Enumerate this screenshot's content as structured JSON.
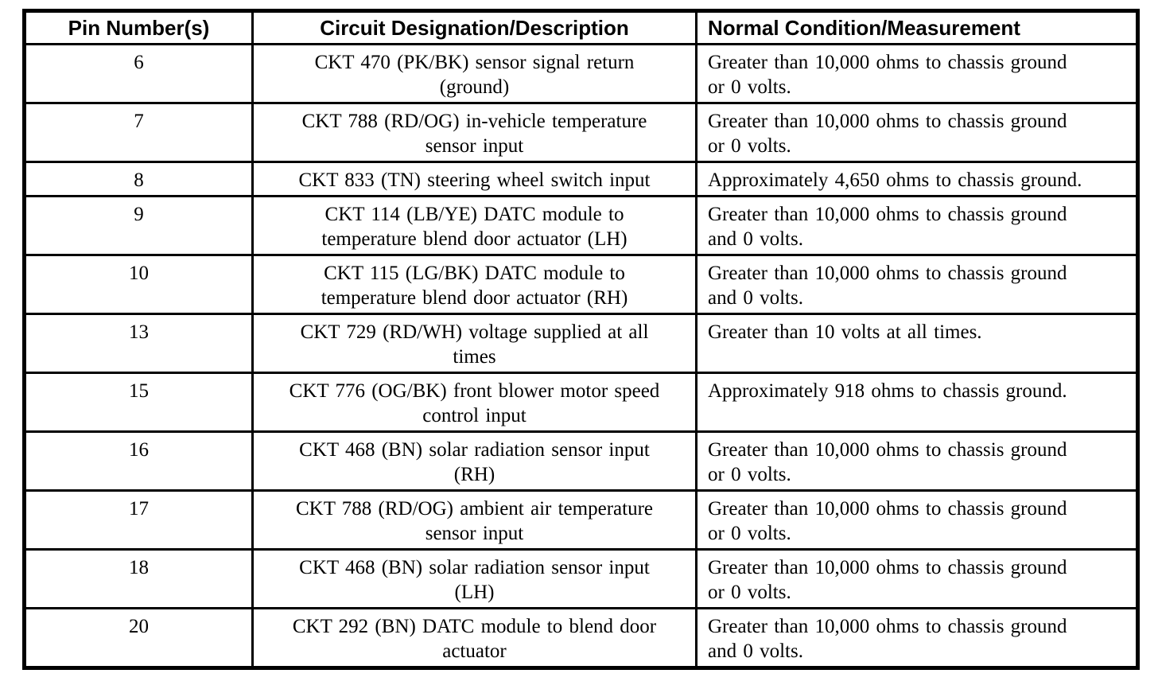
{
  "page": {
    "background_color": "#ffffff",
    "text_color": "#000000",
    "border_color": "#000000"
  },
  "table": {
    "columns": [
      "Pin Number(s)",
      "Circuit Designation/Description",
      "Normal Condition/Measurement"
    ],
    "rows": [
      {
        "pin": "6",
        "circuit": "CKT 470 (PK/BK) sensor signal return\n(ground)",
        "normal": "Greater than 10,000 ohms to chassis ground\nor 0 volts."
      },
      {
        "pin": "7",
        "circuit": "CKT 788 (RD/OG) in-vehicle temperature\nsensor input",
        "normal": "Greater than 10,000 ohms to chassis ground\nor 0 volts."
      },
      {
        "pin": "8",
        "circuit": "CKT 833 (TN) steering wheel switch input",
        "normal": "Approximately 4,650 ohms to chassis ground."
      },
      {
        "pin": "9",
        "circuit": "CKT 114 (LB/YE) DATC module to\ntemperature blend door actuator (LH)",
        "normal": "Greater than 10,000 ohms to chassis ground\nand 0 volts."
      },
      {
        "pin": "10",
        "circuit": "CKT 115 (LG/BK) DATC module to\ntemperature blend door actuator (RH)",
        "normal": "Greater than 10,000 ohms to chassis ground\nand 0 volts."
      },
      {
        "pin": "13",
        "circuit": "CKT 729 (RD/WH) voltage supplied at all\ntimes",
        "normal": "Greater than 10 volts at all times."
      },
      {
        "pin": "15",
        "circuit": "CKT 776 (OG/BK) front blower motor speed\ncontrol input",
        "normal": "Approximately 918 ohms to chassis ground."
      },
      {
        "pin": "16",
        "circuit": "CKT 468 (BN) solar radiation sensor input\n(RH)",
        "normal": "Greater than 10,000 ohms to chassis ground\nor 0 volts."
      },
      {
        "pin": "17",
        "circuit": "CKT 788 (RD/OG) ambient air temperature\nsensor input",
        "normal": "Greater than 10,000 ohms to chassis ground\nor 0 volts."
      },
      {
        "pin": "18",
        "circuit": "CKT 468 (BN) solar radiation sensor input\n(LH)",
        "normal": "Greater than 10,000 ohms to chassis ground\nor 0 volts."
      },
      {
        "pin": "20",
        "circuit": "CKT 292 (BN) DATC module to blend door\nactuator",
        "normal": "Greater than 10,000 ohms to chassis ground\nand 0 volts."
      }
    ]
  }
}
